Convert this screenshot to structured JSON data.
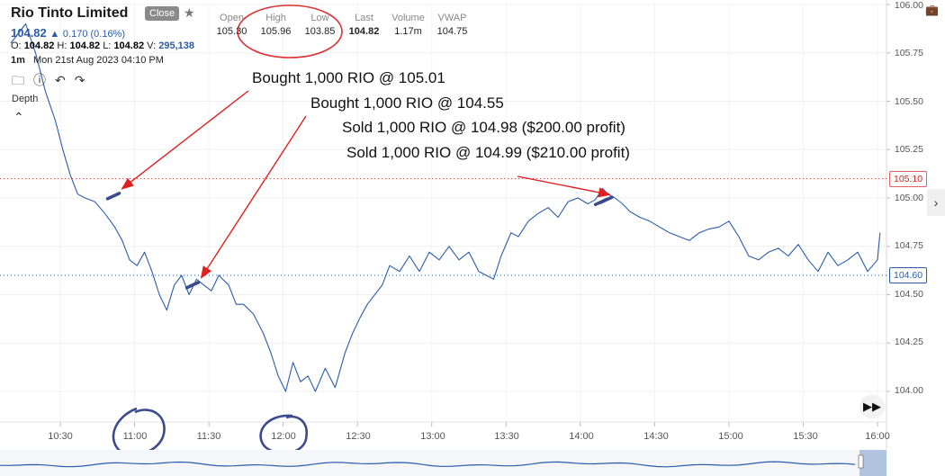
{
  "header": {
    "title": "Rio Tinto Limited",
    "close_label": "Close",
    "star_icon": "star-icon",
    "price": "104.82",
    "change": "0.170 (0.16%)",
    "ohlc": {
      "o_label": "O:",
      "o": "104.82",
      "h_label": "H:",
      "h": "104.82",
      "l_label": "L:",
      "l": "104.82",
      "v_label": "V:",
      "v": "295,138"
    },
    "interval": "1m",
    "datetime": "Mon 21st Aug 2023 04:10 PM"
  },
  "summary": [
    {
      "label": "Open",
      "value": "105.30"
    },
    {
      "label": "High",
      "value": "105.96"
    },
    {
      "label": "Low",
      "value": "103.85"
    },
    {
      "label": "Last",
      "value": "104.82"
    },
    {
      "label": "Volume",
      "value": "1.17m"
    },
    {
      "label": "VWAP",
      "value": "104.75"
    }
  ],
  "toolbar": {
    "depth_label": "Depth",
    "icons": [
      "folder-icon",
      "info-icon",
      "undo-icon",
      "redo-icon",
      "chevron-up-icon"
    ]
  },
  "annotations": [
    {
      "text": "Bought 1,000 RIO @ 105.01"
    },
    {
      "text": "Bought 1,000 RIO @ 104.55"
    },
    {
      "text": "Sold 1,000 RIO @ 104.98 ($200.00 profit)"
    },
    {
      "text": "Sold 1,000 RIO @ 104.99 ($210.00 profit)"
    }
  ],
  "price_labels": {
    "upper": "105.10",
    "lower": "104.60"
  },
  "colors": {
    "line": "#2a5caa",
    "accent": "#2a5caa",
    "red": "#e02020",
    "marker": "#3a4a8c"
  },
  "chart_data": {
    "type": "line",
    "title": "",
    "xlabel": "",
    "ylabel": "",
    "x_ticks": [
      "10:30",
      "11:00",
      "11:30",
      "12:00",
      "12:30",
      "13:00",
      "13:30",
      "14:00",
      "14:30",
      "15:00",
      "15:30",
      "16:00"
    ],
    "y_ticks": [
      "106.00",
      "105.75",
      "105.50",
      "105.25",
      "105.00",
      "104.75",
      "104.50",
      "104.25",
      "104.00"
    ],
    "ylim": [
      103.95,
      106.0
    ],
    "reference_lines": [
      105.1,
      104.6
    ],
    "series": [
      {
        "x": [
          "10:10",
          "10:16",
          "10:20",
          "10:24",
          "10:28",
          "10:31",
          "10:34",
          "10:37",
          "10:40",
          "10:44",
          "10:48",
          "10:52",
          "10:55",
          "10:58",
          "11:01",
          "11:04",
          "11:07",
          "11:10",
          "11:13",
          "11:16",
          "11:19",
          "11:22",
          "11:25",
          "11:28",
          "11:31",
          "11:34",
          "11:38",
          "11:41",
          "11:44",
          "11:48",
          "11:52",
          "11:55",
          "11:58",
          "12:01",
          "12:04",
          "12:07",
          "12:10",
          "12:13",
          "12:17",
          "12:21",
          "12:25",
          "12:28",
          "12:31",
          "12:34",
          "12:37",
          "12:40",
          "12:43",
          "12:47",
          "12:51",
          "12:55",
          "12:59",
          "13:03",
          "13:07",
          "13:11",
          "13:15",
          "13:19",
          "13:22",
          "13:25",
          "13:28",
          "13:32",
          "13:35",
          "13:39",
          "13:43",
          "13:47",
          "13:51",
          "13:55",
          "13:59",
          "14:03",
          "14:06",
          "14:09",
          "14:11",
          "14:14",
          "14:17",
          "14:20",
          "14:24",
          "14:28",
          "14:32",
          "14:36",
          "14:40",
          "14:44",
          "14:48",
          "14:52",
          "14:56",
          "15:00",
          "15:04",
          "15:08",
          "15:12",
          "15:16",
          "15:20",
          "15:24",
          "15:28",
          "15:32",
          "15:36",
          "15:40",
          "15:44",
          "15:48",
          "15:52",
          "15:56",
          "16:00",
          "16:01"
        ],
        "values": [
          105.8,
          105.9,
          105.75,
          105.55,
          105.4,
          105.25,
          105.12,
          105.02,
          105.0,
          104.98,
          104.92,
          104.85,
          104.78,
          104.68,
          104.65,
          104.72,
          104.62,
          104.5,
          104.42,
          104.55,
          104.6,
          104.5,
          104.58,
          104.55,
          104.52,
          104.6,
          104.55,
          104.45,
          104.45,
          104.4,
          104.3,
          104.2,
          104.08,
          104.0,
          104.15,
          104.05,
          104.08,
          104.0,
          104.12,
          104.02,
          104.2,
          104.3,
          104.38,
          104.45,
          104.5,
          104.55,
          104.65,
          104.62,
          104.7,
          104.62,
          104.72,
          104.68,
          104.75,
          104.68,
          104.72,
          104.62,
          104.6,
          104.58,
          104.7,
          104.82,
          104.8,
          104.88,
          104.92,
          104.95,
          104.9,
          104.98,
          105.0,
          104.97,
          104.99,
          105.05,
          105.02,
          105.0,
          104.97,
          104.93,
          104.9,
          104.88,
          104.85,
          104.82,
          104.8,
          104.78,
          104.82,
          104.84,
          104.85,
          104.88,
          104.8,
          104.7,
          104.68,
          104.72,
          104.74,
          104.7,
          104.76,
          104.68,
          104.62,
          104.72,
          104.65,
          104.68,
          104.72,
          104.62,
          104.68,
          104.82
        ]
      }
    ],
    "trade_markers": [
      {
        "x": "10:52",
        "y": 105.01
      },
      {
        "x": "11:24",
        "y": 104.55
      },
      {
        "x": "14:09",
        "y": 104.98
      },
      {
        "x": "14:11",
        "y": 104.99
      }
    ]
  }
}
